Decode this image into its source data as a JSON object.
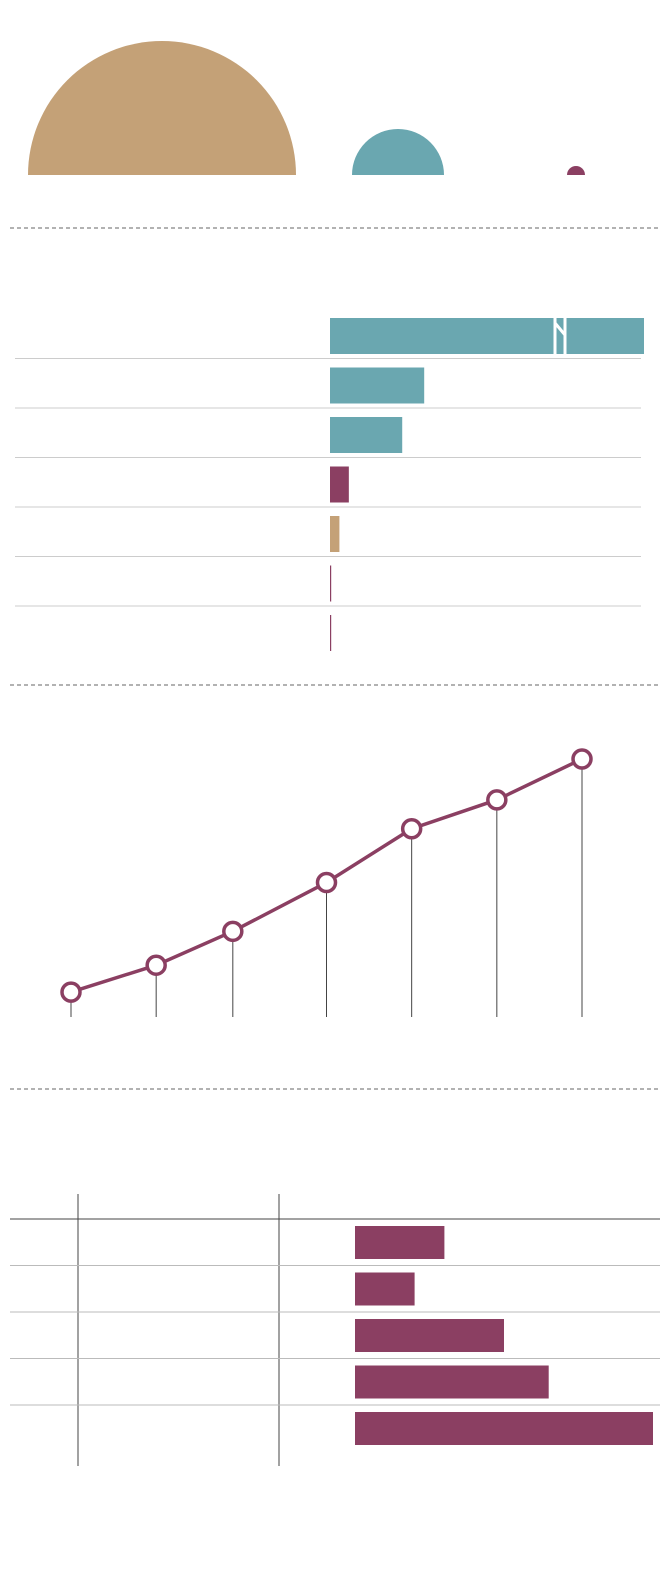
{
  "chart_data": [
    {
      "type": "semicircle",
      "values": [
        134,
        46,
        9
      ],
      "colors": [
        "#c4a177",
        "#6aa7b0",
        "#8b3f62"
      ]
    },
    {
      "type": "hbar",
      "values": [
        100,
        30,
        23,
        6,
        3,
        0.3,
        0.3
      ],
      "colors": [
        "#6aa7b0",
        "#6aa7b0",
        "#6aa7b0",
        "#8b3f62",
        "#c4a177",
        "#8b3f62",
        "#8b3f62"
      ],
      "xlim": [
        0,
        100
      ],
      "broken": [
        true,
        false,
        false,
        false,
        false,
        false,
        false
      ]
    },
    {
      "type": "line",
      "x": [
        0,
        10,
        19,
        30,
        40,
        50,
        60
      ],
      "values": [
        25,
        52,
        86,
        135,
        189,
        218,
        259
      ],
      "color": "#8b3f62",
      "xlim": [
        0,
        60
      ],
      "ylim": [
        0,
        260
      ]
    },
    {
      "type": "tablebar",
      "values": [
        30,
        20,
        50,
        65,
        100
      ],
      "color": "#8b3f62",
      "xlim": [
        0,
        100
      ]
    }
  ]
}
